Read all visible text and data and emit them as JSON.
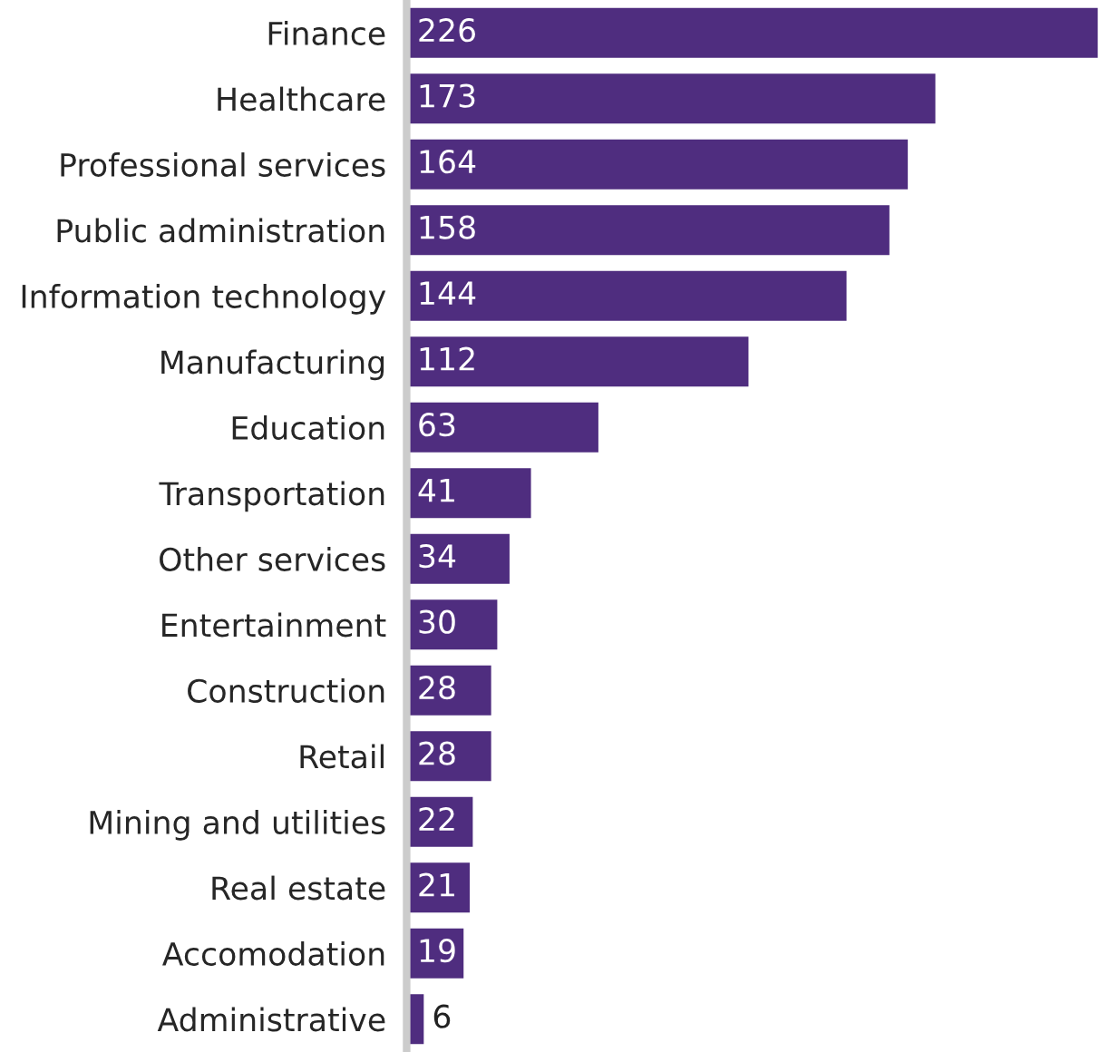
{
  "chart_data": {
    "type": "bar",
    "orientation": "horizontal",
    "categories": [
      "Finance",
      "Healthcare",
      "Professional services",
      "Public administration",
      "Information technology",
      "Manufacturing",
      "Education",
      "Transportation",
      "Other services",
      "Entertainment",
      "Construction",
      "Retail",
      "Mining and utilities",
      "Real estate",
      "Accomodation",
      "Administrative"
    ],
    "values": [
      226,
      173,
      164,
      158,
      144,
      112,
      63,
      41,
      34,
      30,
      28,
      28,
      22,
      21,
      19,
      6
    ],
    "color": "#4f2d7f",
    "data_labels": true,
    "grid": false,
    "legend": false
  }
}
